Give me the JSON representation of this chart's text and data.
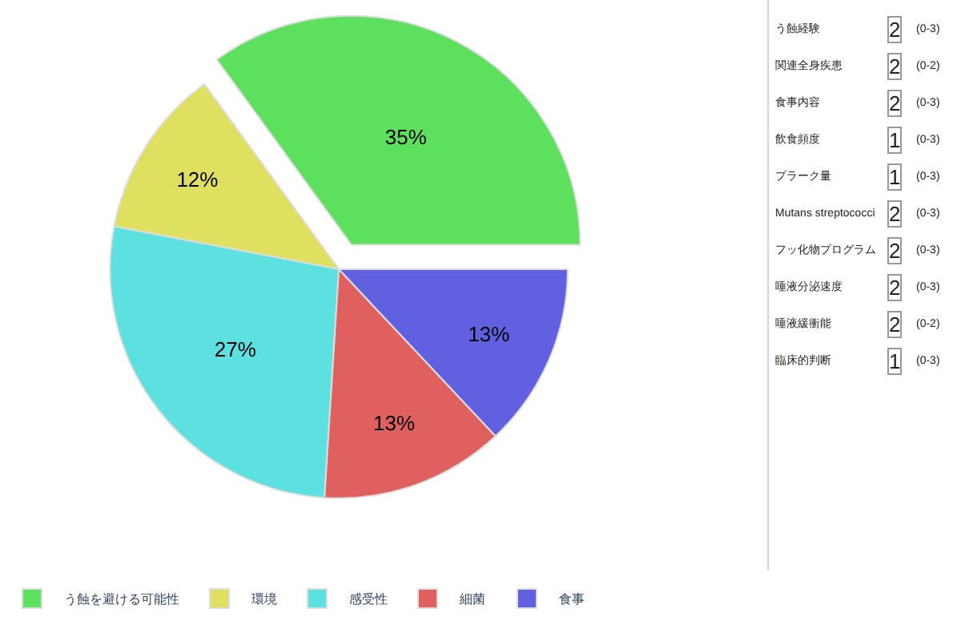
{
  "chart_data": {
    "type": "pie",
    "categories": [
      "う蝕を避ける可能性",
      "環境",
      "感受性",
      "細菌",
      "食事"
    ],
    "values": [
      35,
      12,
      27,
      13,
      13
    ],
    "colors": [
      "#5de05d",
      "#e0e060",
      "#5de0e0",
      "#e06060",
      "#6060e0"
    ],
    "value_labels": [
      "35%",
      "12%",
      "27%",
      "13%",
      "13%"
    ],
    "legend": "bottom",
    "annotations": [
      "う蝕経験",
      "2",
      "(0-3)",
      "関連全身疾患",
      "2",
      "(0-2)",
      "食事内容",
      "2",
      "(0-3)",
      "飲食頻度",
      "1",
      "(0-3)",
      "プラーク量",
      "1",
      "(0-3)",
      "Mutans streptococci",
      "2",
      "(0-3)",
      "フッ化物プログラム",
      "2",
      "(0-3)",
      "唾液分泌速度",
      "2",
      "(0-3)",
      "唾液緩衝能",
      "2",
      "(0-2)",
      "臨床的判断",
      "1",
      "(0-3)"
    ]
  }
}
